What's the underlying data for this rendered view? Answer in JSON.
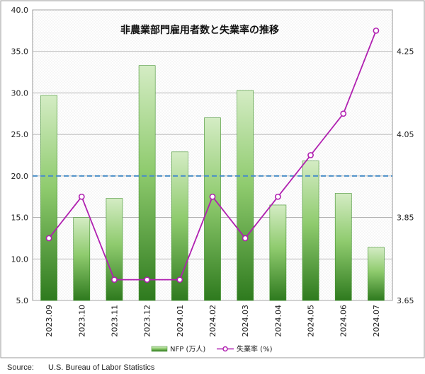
{
  "chart_data": {
    "type": "bar",
    "title": "非農業部門雇用者数と失業率の推移",
    "categories": [
      "2023.09",
      "2023.10",
      "2023.11",
      "2023.12",
      "2024.01",
      "2024.02",
      "2024.03",
      "2024.04",
      "2024.05",
      "2024.06",
      "2024.07"
    ],
    "series": [
      {
        "name": "NFP (万人)",
        "type": "bar",
        "axis": "left",
        "values": [
          29.7,
          15.0,
          17.3,
          33.3,
          22.9,
          27.0,
          30.3,
          16.5,
          21.8,
          17.9,
          11.4
        ],
        "color": "#3f8f2a"
      },
      {
        "name": "失業率 (%)",
        "type": "line",
        "axis": "right",
        "values": [
          3.8,
          3.9,
          3.7,
          3.7,
          3.7,
          3.9,
          3.8,
          3.9,
          4.0,
          4.1,
          4.3
        ],
        "color": "#b020b0"
      }
    ],
    "reference_line": {
      "axis": "left",
      "value": 20.0,
      "color": "#4a8fc8",
      "style": "dashed"
    },
    "ylim_left": [
      5.0,
      40.0
    ],
    "yticks_left": [
      "5.0",
      "10.0",
      "15.0",
      "20.0",
      "25.0",
      "30.0",
      "35.0",
      "40.0"
    ],
    "ylim_right": [
      3.65,
      4.35
    ],
    "yticks_right": [
      "3.65",
      "3.85",
      "4.05",
      "4.25"
    ],
    "grid": true,
    "legend_position": "bottom"
  },
  "source": {
    "label": "Source:",
    "text": "U.S. Bureau of Labor Statistics"
  }
}
